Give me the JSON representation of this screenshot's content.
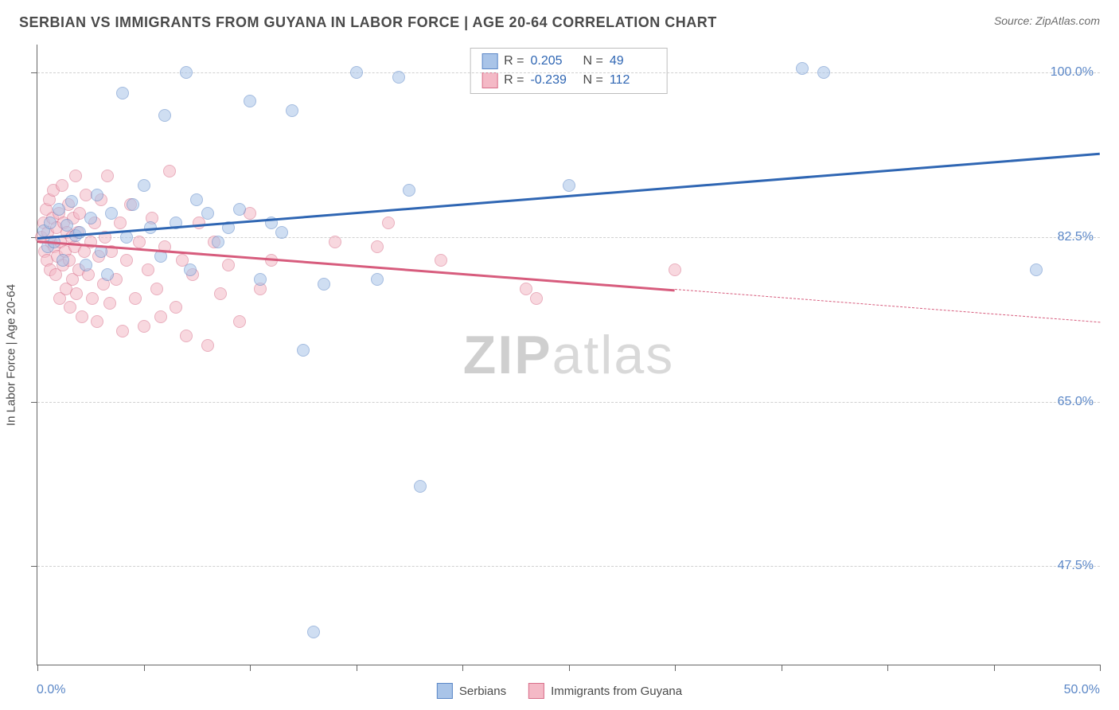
{
  "title": "SERBIAN VS IMMIGRANTS FROM GUYANA IN LABOR FORCE | AGE 20-64 CORRELATION CHART",
  "source": "Source: ZipAtlas.com",
  "watermark_a": "ZIP",
  "watermark_b": "atlas",
  "chart": {
    "type": "scatter",
    "background_color": "#ffffff",
    "grid_color": "#d0d0d0",
    "axis_color": "#666666",
    "xlim": [
      0.0,
      50.0
    ],
    "ylim": [
      37.0,
      103.0
    ],
    "x_ticks": [
      0,
      5,
      10,
      15,
      20,
      25,
      30,
      35,
      40,
      45,
      50
    ],
    "y_gridlines": [
      47.5,
      65.0,
      82.5,
      100.0
    ],
    "y_tick_labels": [
      "47.5%",
      "65.0%",
      "82.5%",
      "100.0%"
    ],
    "x_min_label": "0.0%",
    "x_max_label": "50.0%",
    "ylabel": "In Labor Force | Age 20-64",
    "label_fontsize": 15,
    "tick_label_color": "#5b87c7",
    "point_radius": 8,
    "point_opacity": 0.55,
    "series": {
      "serbians": {
        "label": "Serbians",
        "fill": "#a9c4e8",
        "stroke": "#5b87c7",
        "trend_color": "#2f66b3",
        "R": "0.205",
        "N": "49",
        "trend": {
          "x1": 0,
          "y1": 82.5,
          "x2": 50,
          "y2": 91.5
        },
        "points": [
          [
            0.3,
            83.2
          ],
          [
            0.5,
            81.5
          ],
          [
            0.6,
            84.0
          ],
          [
            0.8,
            82.0
          ],
          [
            1.0,
            85.5
          ],
          [
            1.2,
            80.0
          ],
          [
            1.4,
            83.8
          ],
          [
            1.6,
            86.3
          ],
          [
            1.8,
            82.7
          ],
          [
            2.0,
            83.0
          ],
          [
            2.3,
            79.5
          ],
          [
            2.5,
            84.5
          ],
          [
            2.8,
            87.0
          ],
          [
            3.0,
            81.0
          ],
          [
            3.3,
            78.5
          ],
          [
            3.5,
            85.0
          ],
          [
            4.0,
            97.8
          ],
          [
            4.2,
            82.5
          ],
          [
            4.5,
            86.0
          ],
          [
            5.0,
            88.0
          ],
          [
            5.3,
            83.5
          ],
          [
            5.8,
            80.5
          ],
          [
            6.0,
            95.5
          ],
          [
            6.5,
            84.0
          ],
          [
            7.0,
            100.0
          ],
          [
            7.2,
            79.0
          ],
          [
            7.5,
            86.5
          ],
          [
            8.0,
            85.0
          ],
          [
            8.5,
            82.0
          ],
          [
            9.0,
            83.5
          ],
          [
            9.5,
            85.5
          ],
          [
            10.0,
            97.0
          ],
          [
            10.5,
            78.0
          ],
          [
            11.0,
            84.0
          ],
          [
            11.5,
            83.0
          ],
          [
            12.0,
            96.0
          ],
          [
            12.5,
            70.5
          ],
          [
            13.0,
            40.5
          ],
          [
            13.5,
            77.5
          ],
          [
            15.0,
            100.0
          ],
          [
            16.0,
            78.0
          ],
          [
            17.0,
            99.5
          ],
          [
            17.5,
            87.5
          ],
          [
            18.0,
            56.0
          ],
          [
            25.0,
            88.0
          ],
          [
            36.0,
            100.5
          ],
          [
            37.0,
            100.0
          ],
          [
            47.0,
            79.0
          ]
        ]
      },
      "guyana": {
        "label": "Immigants from Guyana",
        "fill": "#f4b9c6",
        "stroke": "#d86f8a",
        "trend_color": "#d75c7d",
        "R": "-0.239",
        "N": "112",
        "trend_solid": {
          "x1": 0,
          "y1": 82.2,
          "x2": 30,
          "y2": 77.0
        },
        "trend_dashed": {
          "x1": 30,
          "y1": 77.0,
          "x2": 50,
          "y2": 73.5
        },
        "points": [
          [
            0.2,
            82.5
          ],
          [
            0.3,
            84.0
          ],
          [
            0.35,
            81.0
          ],
          [
            0.4,
            85.5
          ],
          [
            0.45,
            80.0
          ],
          [
            0.5,
            83.0
          ],
          [
            0.55,
            86.5
          ],
          [
            0.6,
            79.0
          ],
          [
            0.65,
            82.0
          ],
          [
            0.7,
            84.5
          ],
          [
            0.75,
            87.5
          ],
          [
            0.8,
            81.5
          ],
          [
            0.85,
            78.5
          ],
          [
            0.9,
            83.5
          ],
          [
            0.95,
            80.5
          ],
          [
            1.0,
            85.0
          ],
          [
            1.05,
            76.0
          ],
          [
            1.1,
            82.0
          ],
          [
            1.15,
            88.0
          ],
          [
            1.2,
            79.5
          ],
          [
            1.25,
            84.0
          ],
          [
            1.3,
            81.0
          ],
          [
            1.35,
            77.0
          ],
          [
            1.4,
            83.0
          ],
          [
            1.45,
            86.0
          ],
          [
            1.5,
            80.0
          ],
          [
            1.55,
            75.0
          ],
          [
            1.6,
            82.5
          ],
          [
            1.65,
            78.0
          ],
          [
            1.7,
            84.5
          ],
          [
            1.75,
            81.5
          ],
          [
            1.8,
            89.0
          ],
          [
            1.85,
            76.5
          ],
          [
            1.9,
            83.0
          ],
          [
            1.95,
            79.0
          ],
          [
            2.0,
            85.0
          ],
          [
            2.1,
            74.0
          ],
          [
            2.2,
            81.0
          ],
          [
            2.3,
            87.0
          ],
          [
            2.4,
            78.5
          ],
          [
            2.5,
            82.0
          ],
          [
            2.6,
            76.0
          ],
          [
            2.7,
            84.0
          ],
          [
            2.8,
            73.5
          ],
          [
            2.9,
            80.5
          ],
          [
            3.0,
            86.5
          ],
          [
            3.1,
            77.5
          ],
          [
            3.2,
            82.5
          ],
          [
            3.3,
            89.0
          ],
          [
            3.4,
            75.5
          ],
          [
            3.5,
            81.0
          ],
          [
            3.7,
            78.0
          ],
          [
            3.9,
            84.0
          ],
          [
            4.0,
            72.5
          ],
          [
            4.2,
            80.0
          ],
          [
            4.4,
            86.0
          ],
          [
            4.6,
            76.0
          ],
          [
            4.8,
            82.0
          ],
          [
            5.0,
            73.0
          ],
          [
            5.2,
            79.0
          ],
          [
            5.4,
            84.5
          ],
          [
            5.6,
            77.0
          ],
          [
            5.8,
            74.0
          ],
          [
            6.0,
            81.5
          ],
          [
            6.2,
            89.5
          ],
          [
            6.5,
            75.0
          ],
          [
            6.8,
            80.0
          ],
          [
            7.0,
            72.0
          ],
          [
            7.3,
            78.5
          ],
          [
            7.6,
            84.0
          ],
          [
            8.0,
            71.0
          ],
          [
            8.3,
            82.0
          ],
          [
            8.6,
            76.5
          ],
          [
            9.0,
            79.5
          ],
          [
            9.5,
            73.5
          ],
          [
            10.0,
            85.0
          ],
          [
            10.5,
            77.0
          ],
          [
            11.0,
            80.0
          ],
          [
            14.0,
            82.0
          ],
          [
            16.0,
            81.5
          ],
          [
            16.5,
            84.0
          ],
          [
            19.0,
            80.0
          ],
          [
            23.0,
            77.0
          ],
          [
            23.5,
            76.0
          ],
          [
            30.0,
            79.0
          ]
        ]
      }
    }
  },
  "rn_box": {
    "rows": [
      {
        "r_label": "R =",
        "r_val": "0.205",
        "n_label": "N =",
        "n_val": "49",
        "swatch_fill": "#a9c4e8",
        "swatch_stroke": "#5b87c7",
        "val_color": "#2f66b3"
      },
      {
        "r_label": "R =",
        "r_val": "-0.239",
        "n_label": "N =",
        "n_val": "112",
        "swatch_fill": "#f4b9c6",
        "swatch_stroke": "#d86f8a",
        "val_color": "#2f66b3"
      }
    ]
  },
  "legend": {
    "items": [
      {
        "label": "Serbians",
        "fill": "#a9c4e8",
        "stroke": "#5b87c7"
      },
      {
        "label": "Immigrants from Guyana",
        "fill": "#f4b9c6",
        "stroke": "#d86f8a"
      }
    ]
  }
}
